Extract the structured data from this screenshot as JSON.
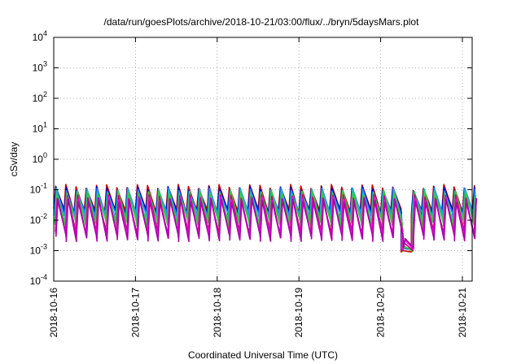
{
  "chart_data": {
    "type": "line",
    "title": "/data/run/goesPlots/archive/2018-10-21/03:00/flux/../bryn/5daysMars.plot",
    "xlabel": "Coordinated Universal Time (UTC)",
    "ylabel": "cSv/day",
    "yscale": "log",
    "ylim": [
      0.0001,
      10000
    ],
    "xlim_days": [
      0,
      5.17
    ],
    "x_ticks": [
      {
        "label": "2018-10-16",
        "day": 0
      },
      {
        "label": "2018-10-17",
        "day": 1
      },
      {
        "label": "2018-10-18",
        "day": 2
      },
      {
        "label": "2018-10-19",
        "day": 3
      },
      {
        "label": "2018-10-20",
        "day": 4
      },
      {
        "label": "2018-10-21",
        "day": 5
      }
    ],
    "y_ticks": [
      {
        "base": "10",
        "exp": "4",
        "value": 10000
      },
      {
        "base": "10",
        "exp": "3",
        "value": 1000
      },
      {
        "base": "10",
        "exp": "2",
        "value": 100
      },
      {
        "base": "10",
        "exp": "1",
        "value": 10
      },
      {
        "base": "10",
        "exp": "0",
        "value": 1
      },
      {
        "base": "10",
        "exp": "-1",
        "value": 0.1
      },
      {
        "base": "10",
        "exp": "-2",
        "value": 0.01
      },
      {
        "base": "10",
        "exp": "-3",
        "value": 0.001
      },
      {
        "base": "10",
        "exp": "-4",
        "value": 0.0001
      }
    ],
    "grid": true,
    "legend": "none",
    "pattern": {
      "cycle_days": 0.125,
      "gap_start_day": 4.16,
      "gap_end_day": 4.38,
      "gap_min_value": 0.0004
    },
    "series": [
      {
        "color": "#cc0000",
        "peak": 0.13,
        "trough": 0.02
      },
      {
        "color": "#0000cc",
        "peak": 0.11,
        "trough": 0.018
      },
      {
        "color": "#1e90ff",
        "peak": 0.1,
        "trough": 0.015
      },
      {
        "color": "#2ab7a0",
        "peak": 0.09,
        "trough": 0.01
      },
      {
        "color": "#33cc33",
        "peak": 0.08,
        "trough": 0.008
      },
      {
        "color": "#cc0077",
        "peak": 0.06,
        "trough": 0.004
      },
      {
        "color": "#ff00ff",
        "peak": 0.05,
        "trough": 0.003
      },
      {
        "color": "#aa00aa",
        "peak": 0.045,
        "trough": 0.0025
      }
    ]
  }
}
